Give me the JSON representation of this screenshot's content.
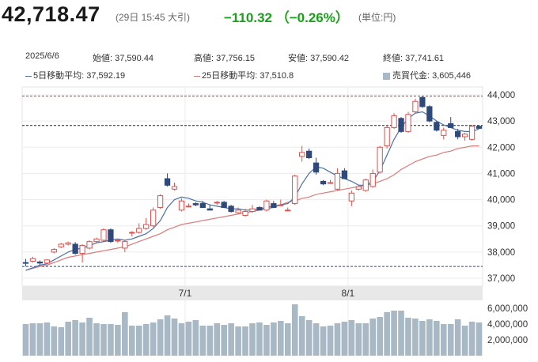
{
  "header": {
    "price": "42,718.47",
    "timestamp": "(29日 15:45 大引)",
    "change": "−110.32 （−0.26%）",
    "unit": "(単位:円)",
    "change_color": "#1aa01a"
  },
  "info": {
    "date": "2025/6/6",
    "open": "始値: 37,590.44",
    "high": "高値: 37,756.15",
    "low": "安値: 37,590.42",
    "close": "終値: 37,741.61",
    "ma5": "5日移動平均: 37,592.19",
    "ma25": "25日移動平均: 37,510.8",
    "turnover": "売買代金: 3,605,446"
  },
  "colors": {
    "up": "#d9534f",
    "down": "#2f4a7a",
    "ma5": "#4a6fa5",
    "ma25": "#d97b7b",
    "volume": "#a8b8c4",
    "high_line": "#c0392b",
    "current_line": "#222222",
    "low_line": "#2f4a7a"
  },
  "chart_data": {
    "type": "candlestick",
    "price_axis": {
      "min": 36700,
      "max": 44300,
      "ticks": [
        37000,
        38000,
        39000,
        40000,
        41000,
        42000,
        43000,
        44000
      ],
      "tick_labels": [
        "37,000",
        "38,000",
        "39,000",
        "40,000",
        "41,000",
        "42,000",
        "43,000",
        "44,000"
      ]
    },
    "volume_axis": {
      "min": 0,
      "max": 7000000,
      "ticks": [
        2000000,
        4000000,
        6000000
      ],
      "tick_labels": [
        "2,000,000",
        "4,000,000",
        "6,000,000"
      ]
    },
    "date_labels": [
      {
        "index": 23,
        "label": "7/1"
      },
      {
        "index": 46,
        "label": "8/1"
      }
    ],
    "reference_lines": {
      "high": 43950,
      "current": 42830,
      "low": 37450
    },
    "candles": [
      [
        37600,
        37740,
        37450,
        37590
      ],
      [
        37650,
        37820,
        37600,
        37750
      ],
      [
        37620,
        37680,
        37500,
        37580
      ],
      [
        37580,
        37720,
        37560,
        37700
      ],
      [
        38000,
        38150,
        37950,
        38100
      ],
      [
        38200,
        38350,
        38150,
        38300
      ],
      [
        38300,
        38400,
        38250,
        38350
      ],
      [
        38300,
        38380,
        37900,
        37950
      ],
      [
        37950,
        38300,
        37600,
        38250
      ],
      [
        38150,
        38450,
        38100,
        38400
      ],
      [
        38400,
        38550,
        38350,
        38500
      ],
      [
        38450,
        38900,
        38400,
        38850
      ],
      [
        38850,
        38900,
        38350,
        38400
      ],
      [
        38450,
        38500,
        38350,
        38450
      ],
      [
        38150,
        38450,
        38000,
        38400
      ],
      [
        38750,
        38800,
        38600,
        38750
      ],
      [
        38750,
        39100,
        38700,
        38900
      ],
      [
        38900,
        39300,
        38850,
        39050
      ],
      [
        39000,
        39700,
        38950,
        39600
      ],
      [
        39700,
        40200,
        39650,
        40150
      ],
      [
        40800,
        41000,
        40500,
        40550
      ],
      [
        40400,
        40650,
        40350,
        40500
      ],
      [
        39600,
        40050,
        39550,
        39950
      ],
      [
        39750,
        39850,
        39700,
        39750
      ],
      [
        39850,
        39900,
        39750,
        39800
      ],
      [
        39850,
        39950,
        39700,
        39700
      ],
      [
        39650,
        39800,
        39600,
        39600
      ],
      [
        39900,
        39950,
        39800,
        39900
      ],
      [
        39900,
        39950,
        39700,
        39700
      ],
      [
        39750,
        39800,
        39500,
        39550
      ],
      [
        39500,
        39700,
        39450,
        39600
      ],
      [
        39400,
        39650,
        39350,
        39550
      ],
      [
        39550,
        39800,
        39500,
        39650
      ],
      [
        39700,
        39750,
        39600,
        39600
      ],
      [
        39600,
        40000,
        39550,
        39950
      ],
      [
        39850,
        39950,
        39700,
        39700
      ],
      [
        39800,
        40000,
        39750,
        39800
      ],
      [
        39600,
        39700,
        39550,
        39600
      ],
      [
        39850,
        40950,
        39800,
        40900
      ],
      [
        41650,
        42050,
        41450,
        41800
      ],
      [
        41850,
        41950,
        41550,
        41600
      ],
      [
        41400,
        41600,
        40950,
        41050
      ],
      [
        40700,
        40750,
        40550,
        40600
      ],
      [
        40650,
        40750,
        40600,
        40650
      ],
      [
        40400,
        41200,
        40350,
        41000
      ],
      [
        41100,
        41200,
        40800,
        40800
      ],
      [
        39950,
        40350,
        39750,
        40250
      ],
      [
        40400,
        40550,
        40350,
        40500
      ],
      [
        40350,
        40800,
        40300,
        40750
      ],
      [
        40500,
        41150,
        40450,
        41000
      ],
      [
        41050,
        42050,
        41000,
        42000
      ],
      [
        42050,
        42850,
        41950,
        42750
      ],
      [
        42750,
        43300,
        42700,
        43200
      ],
      [
        43100,
        43150,
        42550,
        42600
      ],
      [
        42600,
        43350,
        42550,
        43250
      ],
      [
        43350,
        43850,
        43300,
        43750
      ],
      [
        43900,
        43950,
        43500,
        43550
      ],
      [
        43550,
        43600,
        42950,
        43000
      ],
      [
        42950,
        43000,
        42600,
        42650
      ],
      [
        42450,
        42750,
        42300,
        42650
      ],
      [
        42900,
        43150,
        42750,
        42750
      ],
      [
        42600,
        42700,
        42300,
        42400
      ],
      [
        42400,
        42550,
        42250,
        42500
      ],
      [
        42300,
        42850,
        42250,
        42800
      ],
      [
        42800,
        42850,
        42700,
        42720
      ]
    ],
    "ma5": [
      37300,
      37400,
      37500,
      37550,
      37700,
      37850,
      38000,
      38100,
      38150,
      38250,
      38350,
      38400,
      38450,
      38500,
      38450,
      38500,
      38600,
      38700,
      38900,
      39200,
      39700,
      40000,
      40100,
      40050,
      39950,
      39900,
      39800,
      39750,
      39700,
      39650,
      39650,
      39600,
      39600,
      39650,
      39700,
      39750,
      39800,
      39850,
      40100,
      40600,
      41000,
      41250,
      41200,
      41050,
      40900,
      40800,
      40700,
      40550,
      40550,
      40700,
      41100,
      41700,
      42300,
      42750,
      43100,
      43300,
      43350,
      43200,
      43000,
      42850,
      42750,
      42650,
      42600,
      42600,
      42700
    ],
    "ma25": [
      37300,
      37380,
      37450,
      37500,
      37600,
      37700,
      37800,
      37850,
      37900,
      37950,
      38000,
      38050,
      38100,
      38150,
      38200,
      38300,
      38400,
      38500,
      38600,
      38700,
      38850,
      38950,
      39050,
      39100,
      39150,
      39200,
      39250,
      39300,
      39350,
      39400,
      39450,
      39500,
      39550,
      39600,
      39650,
      39700,
      39800,
      39900,
      39950,
      40050,
      40100,
      40200,
      40250,
      40300,
      40350,
      40400,
      40450,
      40500,
      40550,
      40600,
      40700,
      40800,
      40950,
      41150,
      41300,
      41450,
      41550,
      41650,
      41700,
      41800,
      41850,
      41950,
      42000,
      42050,
      42050
    ],
    "volume": [
      4000000,
      4100000,
      4100000,
      4200000,
      3700000,
      3600000,
      4300000,
      4500000,
      4200000,
      4800000,
      4100000,
      4000000,
      4000000,
      3900000,
      5500000,
      3800000,
      3800000,
      4000000,
      4200000,
      4600000,
      5100000,
      4700000,
      4100000,
      4300000,
      4500000,
      3800000,
      3800000,
      4100000,
      3900000,
      4100000,
      3700000,
      3700000,
      4100000,
      4200000,
      3900000,
      4200000,
      4400000,
      4100000,
      6500000,
      5000000,
      4500000,
      4100000,
      3700000,
      3800000,
      4100000,
      4300000,
      4500000,
      4100000,
      4100000,
      4700000,
      4900000,
      5500000,
      5700000,
      5700000,
      4800000,
      4700000,
      4400000,
      4600000,
      4400000,
      4000000,
      4000000,
      4600000,
      3800000,
      4300000,
      4200000
    ]
  }
}
